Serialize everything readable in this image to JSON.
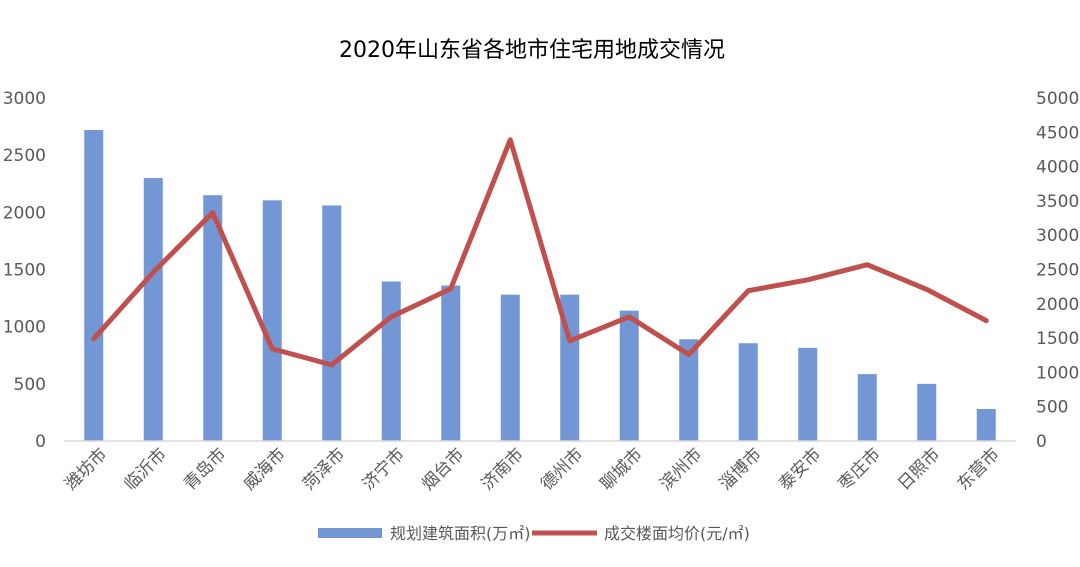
{
  "chart_data": {
    "type": "bar+line",
    "title": "2020年山东省各地市住宅用地成交情况",
    "categories": [
      "潍坊市",
      "临沂市",
      "青岛市",
      "威海市",
      "菏泽市",
      "济宁市",
      "烟台市",
      "济南市",
      "德州市",
      "聊城市",
      "滨州市",
      "淄博市",
      "泰安市",
      "枣庄市",
      "日照市",
      "东营市"
    ],
    "series": [
      {
        "name": "规划建筑面积(万㎡)",
        "type": "bar",
        "axis": "left",
        "color": "#7396D4",
        "values": [
          2720,
          2300,
          2150,
          2105,
          2060,
          1395,
          1360,
          1280,
          1280,
          1140,
          890,
          855,
          815,
          585,
          500,
          280
        ]
      },
      {
        "name": "成交楼面均价(元/㎡)",
        "type": "line",
        "axis": "right",
        "color": "#C0504D",
        "values": [
          1490,
          2460,
          3330,
          1345,
          1110,
          1810,
          2220,
          4390,
          1460,
          1810,
          1260,
          2190,
          2350,
          2570,
          2210,
          1755
        ]
      }
    ],
    "left_axis": {
      "ylim": [
        0,
        3000
      ],
      "ticks": [
        "0",
        "500",
        "1000",
        "1500",
        "2000",
        "2500",
        "3000"
      ]
    },
    "right_axis": {
      "ylim": [
        0,
        5000
      ],
      "ticks": [
        "0",
        "500",
        "1000",
        "1500",
        "2000",
        "2500",
        "3000",
        "3500",
        "4000",
        "4500",
        "5000"
      ]
    },
    "grid": false,
    "legend_position": "bottom"
  }
}
